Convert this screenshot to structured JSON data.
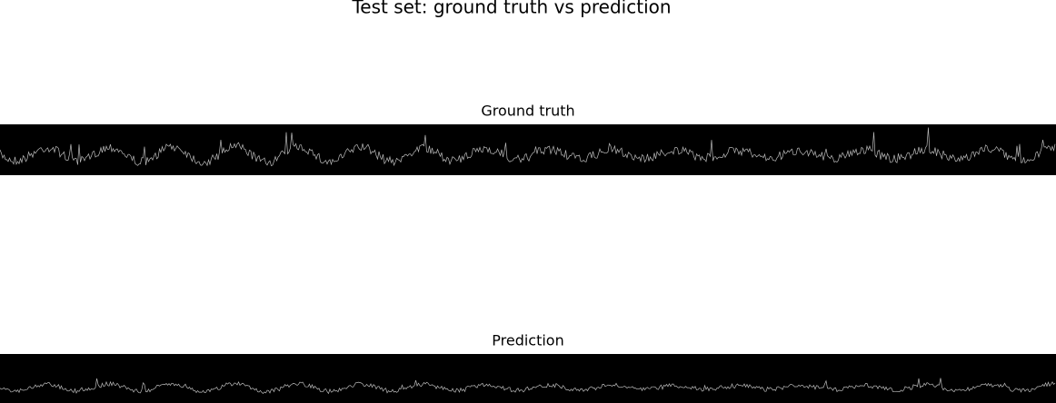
{
  "title": "Test set: ground truth vs prediction",
  "panels": [
    {
      "title": "Ground truth"
    },
    {
      "title": "Prediction"
    }
  ]
}
